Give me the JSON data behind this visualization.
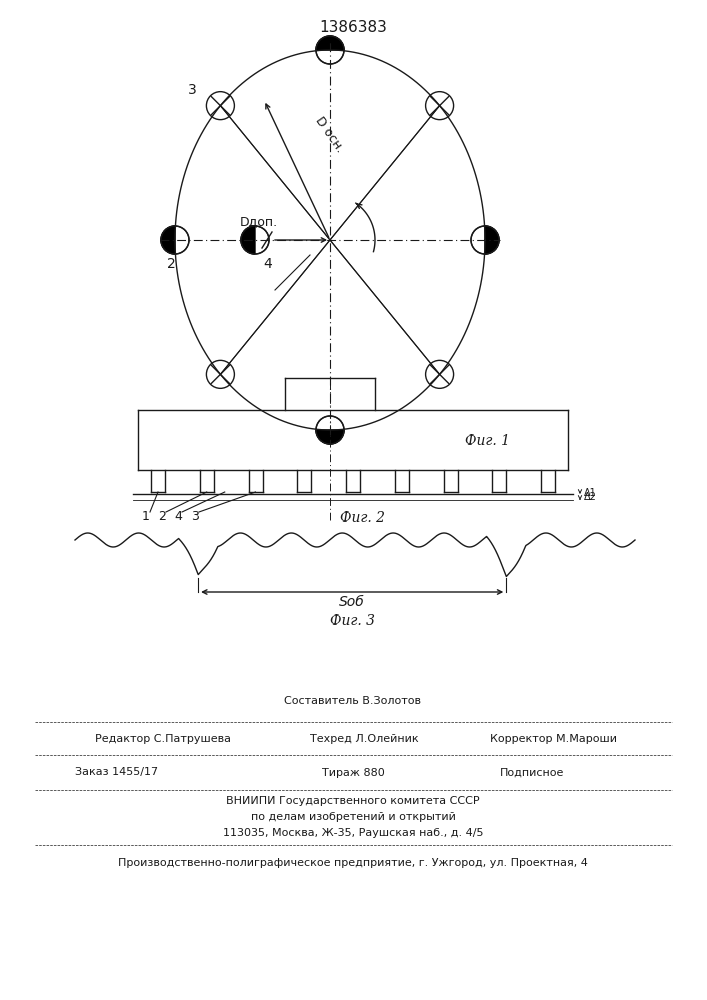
{
  "title": "1386383",
  "fig1_label": "Фиг. 1",
  "fig2_label": "Фиг. 2",
  "fig3_label": "Фиг. 3",
  "label_editor": "Редактор С.Патрушева",
  "label_composer": "Составитель В.Золотов",
  "label_techred": "Техред Л.Олейник",
  "label_corrector": "Корректор М.Мароши",
  "label_order": "Заказ 1455/17",
  "label_tirage": "Тираж 880",
  "label_podpisnoe": "Подписное",
  "label_vniipи": "ВНИИПИ Государственного комитета СССР",
  "label_po_delam": "по делам изобретений и открытий",
  "label_address": "113035, Москва, Ж-35, Раушская наб., д. 4/5",
  "label_factory": "Производственно-полиграфическое предприятие, г. Ужгород, ул. Проектная, 4",
  "bg_color": "#ffffff",
  "line_color": "#1a1a1a",
  "D_osn_label": "D осн.",
  "D_dop_label": "Dдоп.",
  "S_ob_label": "Sоб"
}
